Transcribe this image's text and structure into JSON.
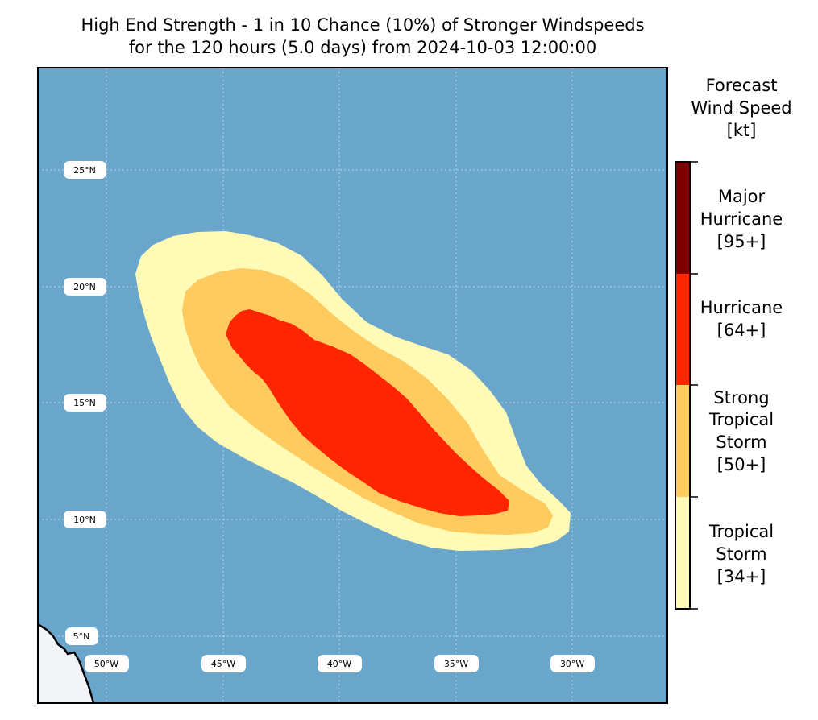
{
  "title": {
    "line1": "High End Strength - 1 in 10 Chance (10%) of Stronger Windspeeds",
    "line2": "for the 120 hours (5.0 days) from 2024-10-03 12:00:00"
  },
  "map": {
    "ocean_color": "#6aa6cb",
    "land_color": "#f2f4f7",
    "lat_labels": [
      "25°N",
      "20°N",
      "15°N",
      "10°N",
      "5°N"
    ],
    "lon_labels": [
      "50°W",
      "45°W",
      "40°W",
      "35°W",
      "30°W"
    ],
    "zones": [
      {
        "name": "tropical-storm",
        "color": "#fffab5"
      },
      {
        "name": "strong-tropical-storm",
        "color": "#ffcb5e"
      },
      {
        "name": "hurricane",
        "color": "#ff2500"
      }
    ]
  },
  "colorbar": {
    "title": [
      "Forecast",
      "Wind Speed",
      "[kt]"
    ],
    "categories": [
      {
        "lines": [
          "Major",
          "Hurricane",
          "[95+]"
        ],
        "color": "#7d0000"
      },
      {
        "lines": [
          "Hurricane",
          "[64+]"
        ],
        "color": "#ff2500"
      },
      {
        "lines": [
          "Strong",
          "Tropical",
          "Storm",
          "[50+]"
        ],
        "color": "#ffcb5e"
      },
      {
        "lines": [
          "Tropical",
          "Storm",
          "[34+]"
        ],
        "color": "#fffab5"
      }
    ]
  }
}
